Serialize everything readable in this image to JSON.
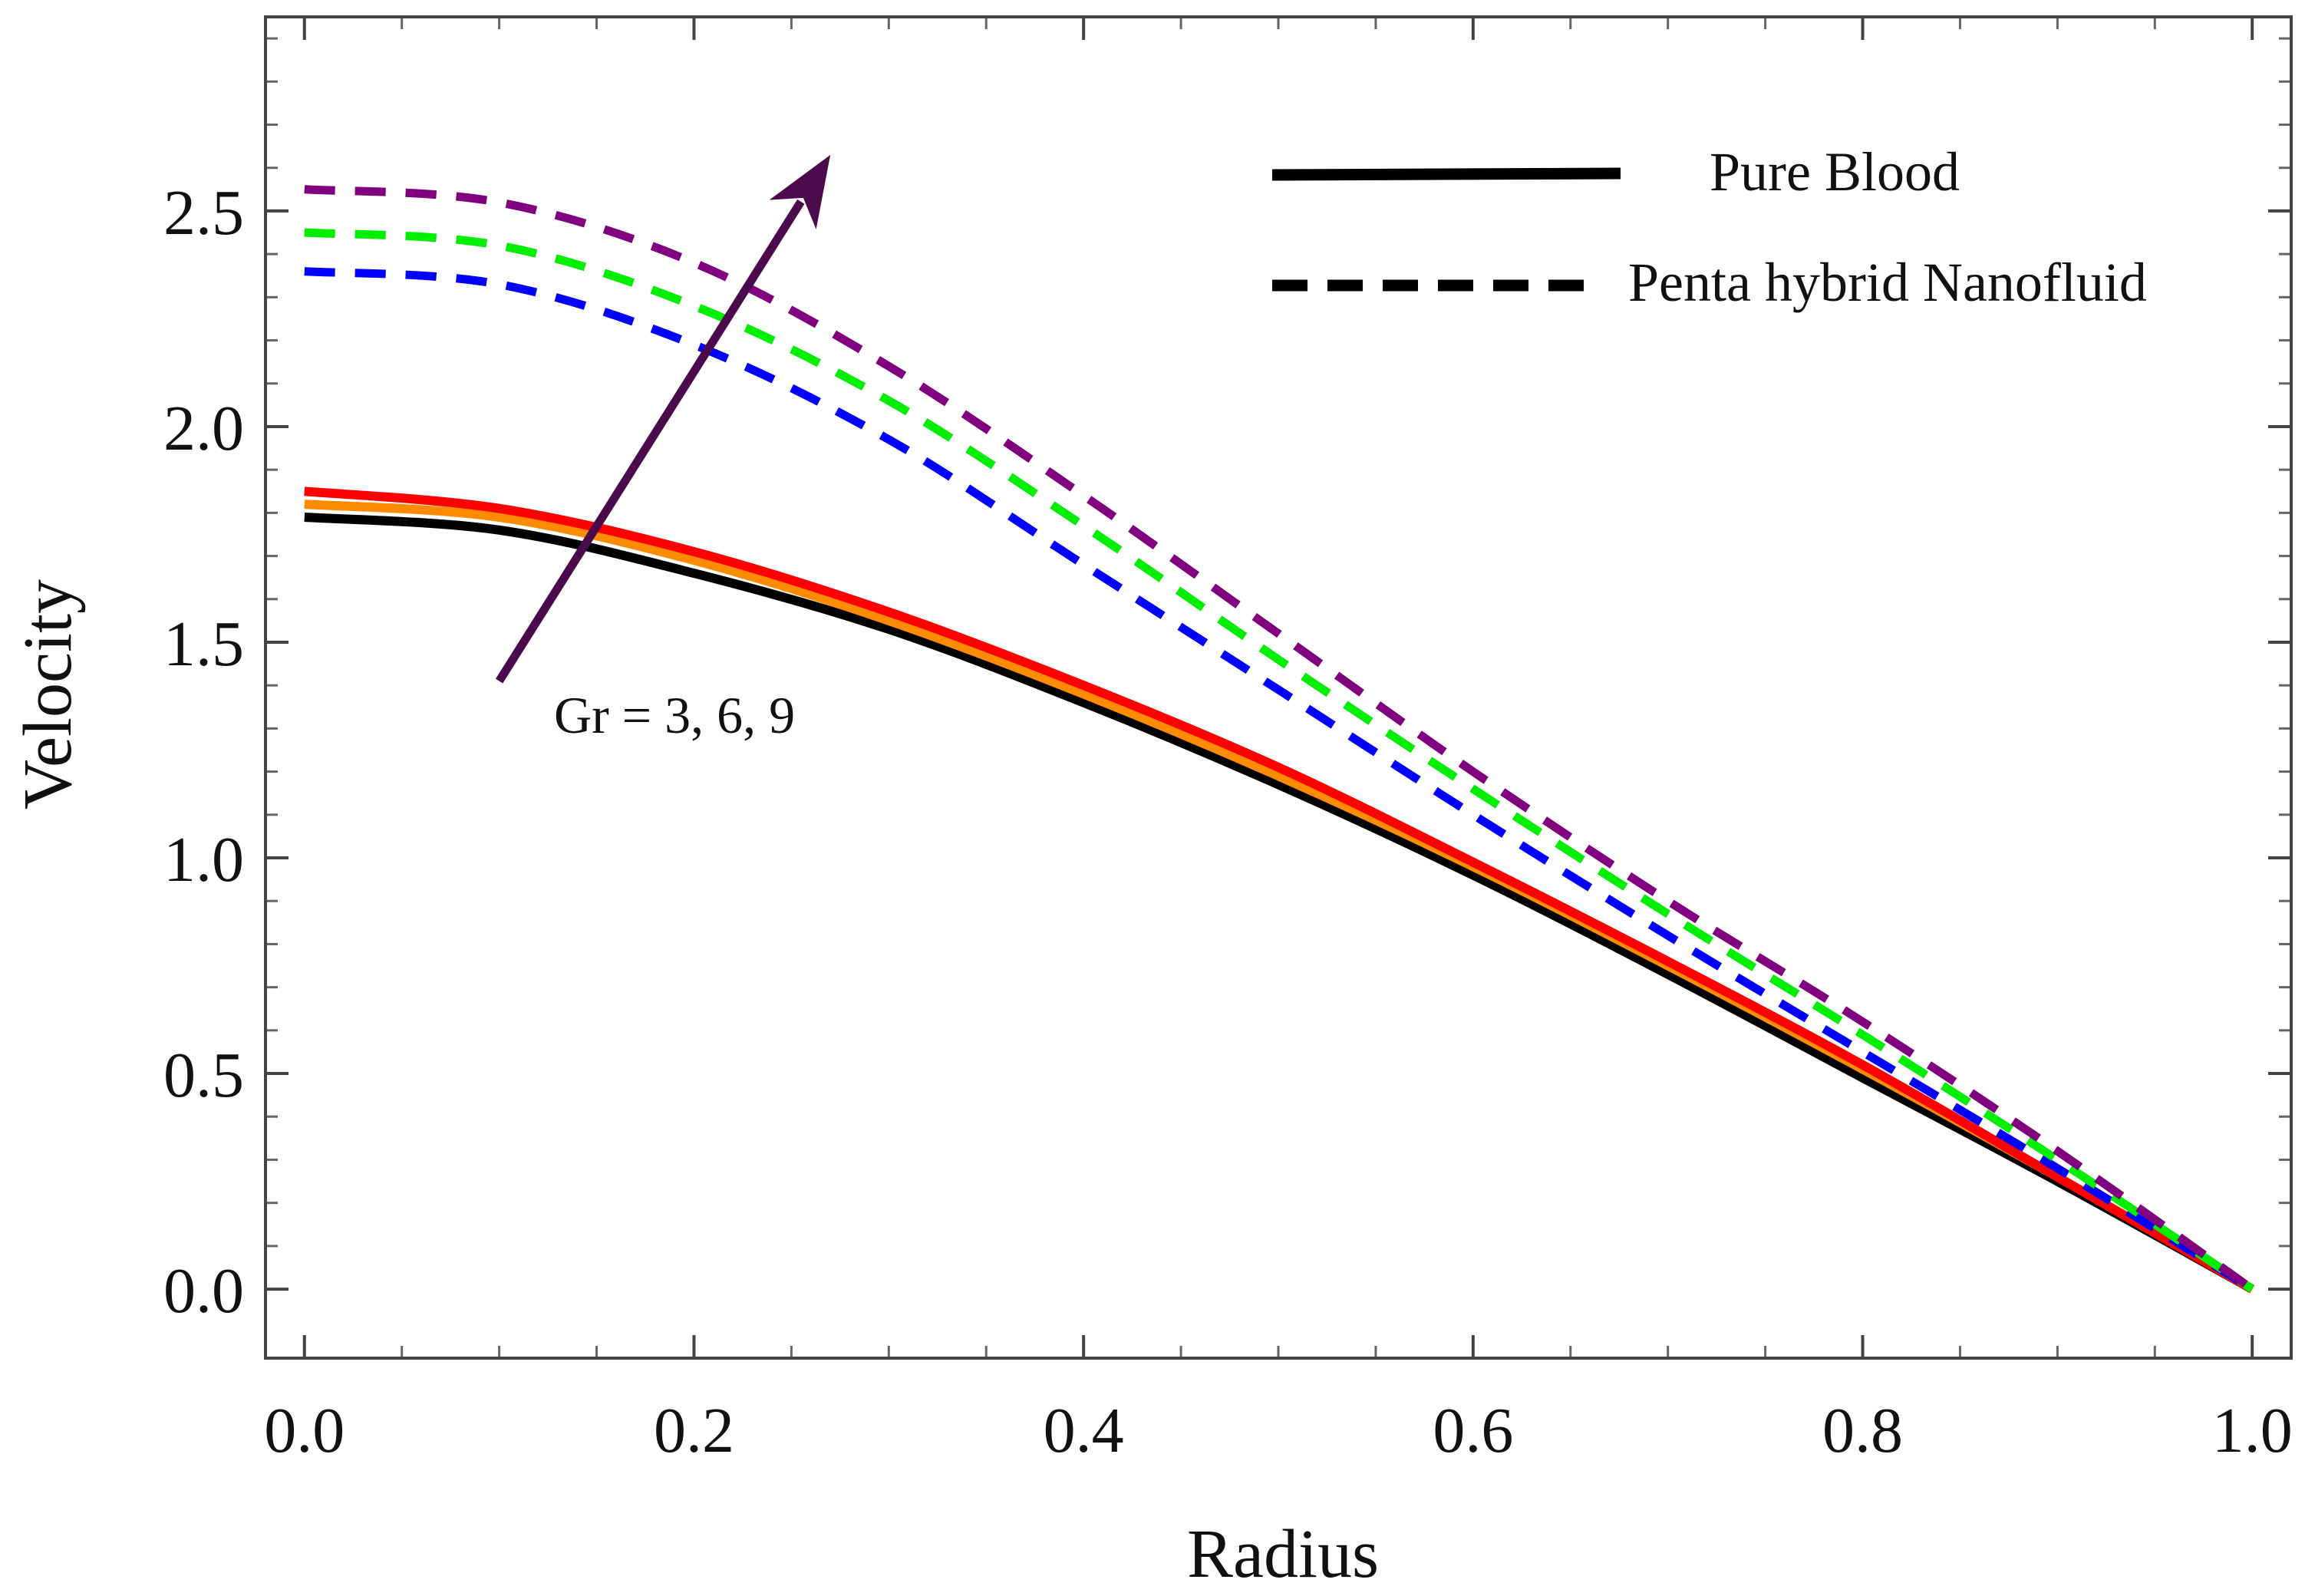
{
  "chart_data": {
    "type": "line",
    "title": "",
    "xlabel": "Radius",
    "ylabel": "Velocity",
    "xlim": [
      -0.02,
      1.02
    ],
    "ylim": [
      -0.16,
      2.95
    ],
    "xticks": [
      0.0,
      0.2,
      0.4,
      0.6,
      0.8,
      1.0
    ],
    "xtick_labels": [
      "0.0",
      "0.2",
      "0.4",
      "0.6",
      "0.8",
      "1.0"
    ],
    "xminor_step": 0.05,
    "yticks": [
      0.0,
      0.5,
      1.0,
      1.5,
      2.0,
      2.5
    ],
    "ytick_labels": [
      "0.0",
      "0.5",
      "1.0",
      "1.5",
      "2.0",
      "2.5"
    ],
    "yminor_step": 0.1,
    "grid": false,
    "x": [
      0.0,
      0.1,
      0.2,
      0.3,
      0.4,
      0.5,
      0.6,
      0.7,
      0.8,
      0.9,
      1.0
    ],
    "series": [
      {
        "name": "Pure Blood, Gr = 3",
        "style": "solid",
        "color": "#000000",
        "values": [
          1.79,
          1.76,
          1.66,
          1.53,
          1.36,
          1.17,
          0.96,
          0.73,
          0.49,
          0.25,
          0.0
        ]
      },
      {
        "name": "Pure Blood, Gr = 6",
        "style": "solid",
        "color": "#ff8c00",
        "values": [
          1.82,
          1.79,
          1.69,
          1.55,
          1.38,
          1.19,
          0.98,
          0.75,
          0.51,
          0.26,
          0.0
        ]
      },
      {
        "name": "Pure Blood, Gr = 9",
        "style": "solid",
        "color": "#ff0000",
        "values": [
          1.85,
          1.81,
          1.71,
          1.57,
          1.4,
          1.21,
          0.99,
          0.76,
          0.52,
          0.26,
          0.0
        ]
      },
      {
        "name": "Penta hybrid Nanofluid, Gr = 3",
        "style": "dashed",
        "color": "#0000ff",
        "values": [
          2.36,
          2.33,
          2.19,
          1.97,
          1.68,
          1.39,
          1.1,
          0.82,
          0.55,
          0.28,
          0.0
        ]
      },
      {
        "name": "Penta hybrid Nanofluid, Gr = 6",
        "style": "dashed",
        "color": "#00ee00",
        "values": [
          2.45,
          2.42,
          2.28,
          2.06,
          1.77,
          1.46,
          1.16,
          0.87,
          0.59,
          0.3,
          0.0
        ]
      },
      {
        "name": "Penta hybrid Nanofluid, Gr = 9",
        "style": "dashed",
        "color": "#800080",
        "values": [
          2.55,
          2.52,
          2.38,
          2.14,
          1.84,
          1.52,
          1.2,
          0.9,
          0.62,
          0.32,
          0.0
        ]
      }
    ],
    "legend": {
      "placement": "top-right",
      "entries": [
        {
          "label": "Pure Blood",
          "style": "solid",
          "color": "#000000"
        },
        {
          "label": "Penta hybrid Nanofluid",
          "style": "dashed",
          "color": "#000000"
        }
      ]
    },
    "annotation": {
      "text": "Gr = 3, 6, 9",
      "arrow_from": [
        0.1,
        1.41
      ],
      "arrow_to": [
        0.27,
        2.63
      ],
      "text_at": [
        0.19,
        1.29
      ],
      "color": "#4b0a4b"
    }
  }
}
